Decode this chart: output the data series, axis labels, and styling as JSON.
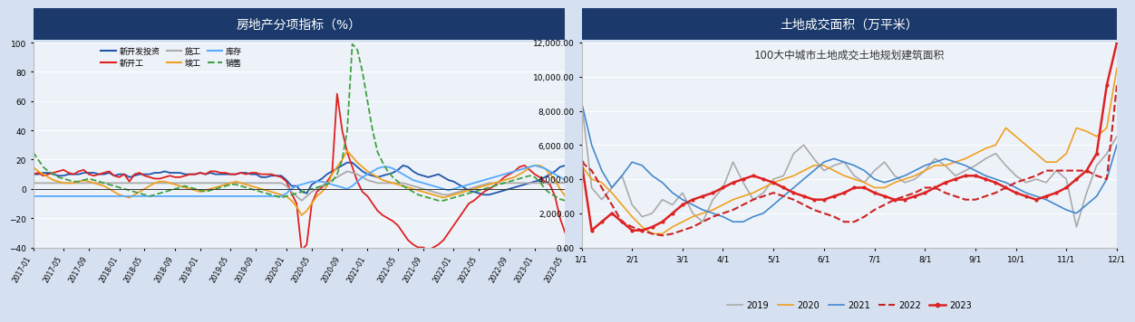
{
  "chart1_title": "房地产分项指标（%）",
  "chart2_title": "土地成交面积（万平米）",
  "chart2_subtitle": "100大中城市土地成交土地规划建筑面积",
  "header_bg": "#1b3a6b",
  "header_text_color": "#ffffff",
  "plot_bg": "#edf2f9",
  "fig_bg": "#d5e0f0",
  "series1": {
    "name": "新开发投资",
    "color": "#2255aa",
    "style": "-"
  },
  "series2": {
    "name": "新开工",
    "color": "#e02020",
    "style": "-"
  },
  "series3": {
    "name": "施工",
    "color": "#aaaaaa",
    "style": "-"
  },
  "series4": {
    "name": "竣工",
    "color": "#f0a020",
    "style": "-"
  },
  "series5": {
    "name": "库存",
    "color": "#55aaff",
    "style": "-"
  },
  "series6": {
    "name": "销售",
    "color": "#40a040",
    "style": "--"
  },
  "s1": [
    10,
    10,
    11,
    11,
    10,
    9,
    9,
    10,
    10,
    10,
    11,
    11,
    11,
    10,
    10,
    11,
    9,
    10,
    10,
    8,
    9,
    10,
    10,
    10,
    11,
    11,
    12,
    11,
    11,
    11,
    10,
    10,
    10,
    11,
    10,
    11,
    10,
    10,
    10,
    10,
    10,
    11,
    11,
    10,
    10,
    8,
    8,
    9,
    9,
    9,
    6,
    2,
    2,
    -2,
    -3,
    3,
    5,
    7,
    10,
    12,
    14,
    16,
    18,
    18,
    15,
    12,
    10,
    9,
    8,
    9,
    10,
    11,
    13,
    16,
    15,
    12,
    10,
    9,
    8,
    9,
    10,
    8,
    6,
    5,
    3,
    1,
    -1,
    -2,
    -3,
    -4,
    -4,
    -3,
    -2,
    -1,
    0,
    1,
    2,
    3,
    4,
    5,
    6,
    8,
    10,
    12,
    15,
    16
  ],
  "s2": [
    10,
    11,
    9,
    10,
    11,
    12,
    13,
    11,
    10,
    12,
    13,
    10,
    9,
    10,
    11,
    12,
    9,
    8,
    10,
    5,
    10,
    11,
    9,
    8,
    7,
    7,
    8,
    9,
    8,
    8,
    9,
    10,
    10,
    11,
    10,
    12,
    12,
    11,
    11,
    10,
    10,
    11,
    10,
    11,
    11,
    10,
    10,
    10,
    9,
    8,
    5,
    -3,
    -10,
    -42,
    -38,
    -10,
    -2,
    1,
    5,
    10,
    65,
    40,
    25,
    15,
    5,
    -2,
    -5,
    -10,
    -15,
    -18,
    -20,
    -22,
    -25,
    -30,
    -35,
    -38,
    -40,
    -40,
    -42,
    -40,
    -38,
    -35,
    -30,
    -25,
    -20,
    -15,
    -10,
    -8,
    -5,
    -2,
    0,
    2,
    5,
    8,
    10,
    12,
    15,
    16,
    13,
    10,
    8,
    5,
    3,
    -5,
    -20,
    -30
  ],
  "s3": [
    4,
    4,
    4,
    4,
    4,
    4,
    4,
    4,
    4,
    4,
    4,
    4,
    4,
    4,
    4,
    4,
    4,
    4,
    4,
    4,
    4,
    4,
    4,
    4,
    4,
    4,
    4,
    4,
    4,
    4,
    4,
    4,
    4,
    4,
    4,
    4,
    4,
    4,
    4,
    4,
    4,
    4,
    4,
    4,
    4,
    4,
    4,
    4,
    4,
    4,
    2,
    -2,
    -5,
    -8,
    -5,
    -2,
    0,
    2,
    4,
    6,
    8,
    10,
    12,
    11,
    10,
    8,
    6,
    5,
    4,
    4,
    4,
    4,
    4,
    4,
    3,
    2,
    1,
    0,
    -1,
    -2,
    -3,
    -4,
    -4,
    -3,
    -2,
    -1,
    0,
    1,
    2,
    3,
    4,
    4,
    4,
    4,
    4,
    4,
    4,
    4,
    4,
    4,
    4,
    4,
    4,
    4,
    4,
    4
  ],
  "s4": [
    15,
    12,
    10,
    8,
    6,
    5,
    4,
    4,
    4,
    5,
    6,
    5,
    4,
    3,
    2,
    0,
    -2,
    -4,
    -5,
    -6,
    -4,
    -2,
    0,
    2,
    4,
    5,
    5,
    4,
    3,
    2,
    1,
    0,
    -1,
    -2,
    -1,
    0,
    1,
    2,
    3,
    4,
    5,
    4,
    3,
    2,
    1,
    0,
    -1,
    -2,
    -3,
    -4,
    -5,
    -8,
    -12,
    -18,
    -15,
    -10,
    -5,
    -2,
    2,
    10,
    15,
    20,
    26,
    22,
    18,
    15,
    12,
    10,
    8,
    6,
    5,
    4,
    3,
    2,
    1,
    0,
    -1,
    -2,
    -3,
    -4,
    -5,
    -6,
    -5,
    -4,
    -3,
    -2,
    -1,
    0,
    1,
    2,
    3,
    4,
    5,
    6,
    7,
    8,
    10,
    12,
    15,
    16,
    16,
    14,
    10,
    6,
    0,
    -5
  ],
  "s5": [
    -5,
    -5,
    -5,
    -5,
    -5,
    -5,
    -5,
    -5,
    -5,
    -5,
    -5,
    -5,
    -5,
    -5,
    -5,
    -5,
    -5,
    -5,
    -5,
    -5,
    -5,
    -5,
    -5,
    -5,
    -5,
    -5,
    -5,
    -5,
    -5,
    -5,
    -5,
    -5,
    -5,
    -5,
    -5,
    -5,
    -5,
    -5,
    -5,
    -5,
    -5,
    -5,
    -5,
    -5,
    -5,
    -5,
    -5,
    -5,
    -5,
    -5,
    -3,
    0,
    2,
    3,
    4,
    5,
    5,
    5,
    4,
    3,
    2,
    1,
    0,
    2,
    5,
    8,
    10,
    12,
    14,
    15,
    15,
    14,
    12,
    10,
    8,
    6,
    5,
    4,
    3,
    2,
    1,
    0,
    -1,
    0,
    1,
    2,
    3,
    4,
    5,
    6,
    7,
    8,
    9,
    10,
    11,
    12,
    13,
    14,
    15,
    16,
    15,
    14,
    12,
    10,
    8,
    6
  ],
  "s6": [
    25,
    20,
    15,
    12,
    10,
    8,
    7,
    6,
    5,
    5,
    6,
    7,
    6,
    5,
    4,
    3,
    2,
    1,
    0,
    -1,
    -2,
    -3,
    -4,
    -5,
    -4,
    -3,
    -2,
    -1,
    0,
    1,
    2,
    1,
    0,
    -1,
    -2,
    -1,
    0,
    1,
    2,
    3,
    3,
    2,
    1,
    0,
    -1,
    -2,
    -3,
    -4,
    -5,
    -6,
    -5,
    -4,
    -3,
    -2,
    -1,
    0,
    1,
    2,
    3,
    5,
    10,
    20,
    40,
    99,
    95,
    80,
    60,
    40,
    25,
    18,
    12,
    8,
    5,
    2,
    0,
    -2,
    -4,
    -5,
    -6,
    -7,
    -8,
    -8,
    -7,
    -6,
    -5,
    -4,
    -3,
    -2,
    -1,
    0,
    1,
    2,
    3,
    4,
    5,
    6,
    7,
    8,
    9,
    8,
    5,
    0,
    -3,
    -5,
    -7,
    -8
  ],
  "chart1_xlabels": [
    "2017-01",
    "2017-05",
    "2017-09",
    "2018-01",
    "2018-05",
    "2018-09",
    "2019-01",
    "2019-05",
    "2019-09",
    "2020-01",
    "2020-05",
    "2020-09",
    "2021-01",
    "2021-05",
    "2021-09",
    "2022-01",
    "2022-05",
    "2022-09",
    "2023-01",
    "2023-05"
  ],
  "chart1_ylim": [
    -40,
    100
  ],
  "chart1_yticks": [
    -40,
    -20,
    0,
    20,
    40,
    60,
    80,
    100
  ],
  "land_2019": [
    8500,
    3500,
    2800,
    3500,
    4200,
    2500,
    1800,
    2000,
    2800,
    2500,
    3200,
    2000,
    1500,
    2800,
    3500,
    5000,
    3800,
    2800,
    3200,
    4000,
    4200,
    5500,
    6000,
    5200,
    4500,
    4800,
    5000,
    4200,
    3800,
    4500,
    5000,
    4200,
    3800,
    4000,
    4500,
    5200,
    4800,
    4200,
    4500,
    4800,
    5200,
    5500,
    4800,
    4200,
    3800,
    4000,
    3800,
    4500,
    4000,
    1200,
    3200,
    4800,
    5500,
    6500
  ],
  "land_2020": [
    4800,
    4000,
    3800,
    3200,
    2500,
    1800,
    1200,
    800,
    800,
    1200,
    1500,
    1800,
    2000,
    2200,
    2500,
    2800,
    3000,
    3200,
    3500,
    3800,
    4000,
    4200,
    4500,
    4800,
    4800,
    4500,
    4200,
    4000,
    3800,
    3500,
    3500,
    3800,
    4000,
    4200,
    4500,
    4800,
    4800,
    5000,
    5200,
    5500,
    5800,
    6000,
    7000,
    6500,
    6000,
    5500,
    5000,
    5000,
    5500,
    7000,
    6800,
    6500,
    7000,
    10500
  ],
  "land_2021": [
    8500,
    6000,
    4500,
    3500,
    4200,
    5000,
    4800,
    4200,
    3800,
    3200,
    2800,
    2500,
    2200,
    2000,
    1800,
    1500,
    1500,
    1800,
    2000,
    2500,
    3000,
    3500,
    4000,
    4500,
    5000,
    5200,
    5000,
    4800,
    4500,
    4000,
    3800,
    4000,
    4200,
    4500,
    4800,
    5000,
    5200,
    5000,
    4800,
    4500,
    4200,
    4000,
    3800,
    3500,
    3200,
    3000,
    2800,
    2500,
    2200,
    2000,
    2500,
    3000,
    4000,
    6000
  ],
  "land_2022": [
    5000,
    4500,
    3500,
    2500,
    1500,
    1200,
    1000,
    800,
    700,
    800,
    1000,
    1200,
    1500,
    1800,
    2000,
    2200,
    2500,
    2800,
    3000,
    3200,
    3000,
    2800,
    2500,
    2200,
    2000,
    1800,
    1500,
    1500,
    1800,
    2200,
    2500,
    2800,
    3000,
    3200,
    3500,
    3500,
    3200,
    3000,
    2800,
    2800,
    3000,
    3200,
    3500,
    3800,
    4000,
    4200,
    4500,
    4500,
    4500,
    4500,
    4500,
    4200,
    4000,
    9500
  ],
  "land_2023": [
    5000,
    1000,
    1500,
    2000,
    1500,
    1000,
    1000,
    1200,
    1500,
    2000,
    2500,
    2800,
    3000,
    3200,
    3500,
    3800,
    4000,
    4200,
    4000,
    3800,
    3500,
    3200,
    3000,
    2800,
    2800,
    3000,
    3200,
    3500,
    3500,
    3200,
    3000,
    2800,
    2800,
    3000,
    3200,
    3500,
    3800,
    4000,
    4200,
    4200,
    4000,
    3800,
    3500,
    3200,
    3000,
    2800,
    3000,
    3200,
    3500,
    4000,
    4500,
    5500,
    9500,
    12000
  ],
  "land_xlabels": [
    "1/1",
    "2/1",
    "3/1",
    "4/1",
    "5/1",
    "6/1",
    "7/1",
    "8/1",
    "9/1",
    "10/1",
    "11/1",
    "12/1"
  ],
  "land_ytick_labels": [
    "0.00",
    "2,000.00",
    "4,000.00",
    "6,000.00",
    "8,000.00",
    "10,000.00",
    "12,000.00"
  ],
  "land_yticks": [
    0,
    2000,
    4000,
    6000,
    8000,
    10000,
    12000
  ]
}
